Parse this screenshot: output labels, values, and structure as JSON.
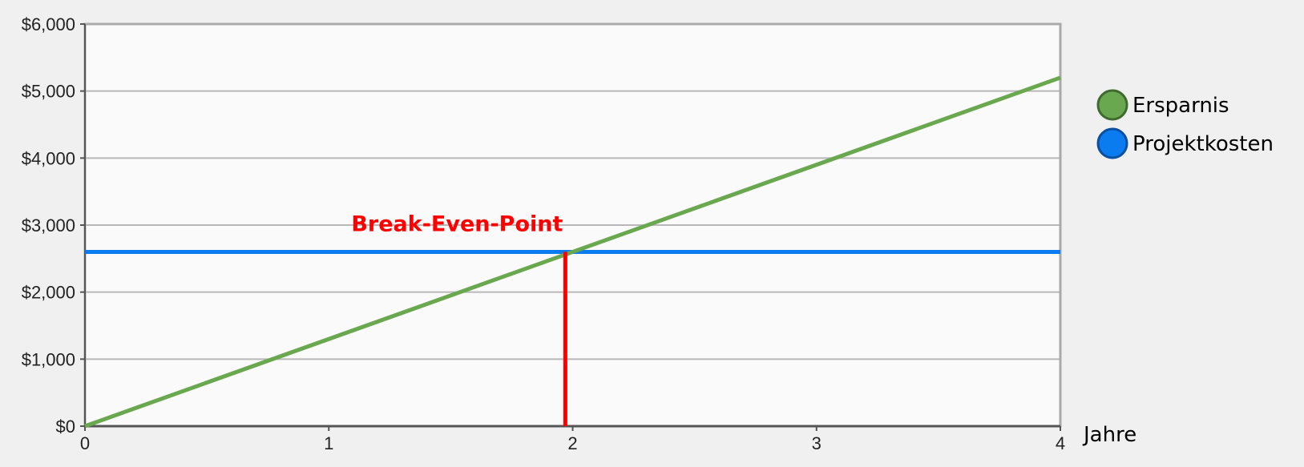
{
  "chart_data": {
    "type": "line",
    "title": "",
    "xlabel": "Jahre",
    "ylabel": "",
    "xlim": [
      0,
      4
    ],
    "ylim": [
      0,
      6000
    ],
    "x_ticks": [
      0,
      1,
      2,
      3,
      4
    ],
    "x_tick_labels": [
      "0",
      "1",
      "2",
      "3",
      "4"
    ],
    "y_ticks": [
      0,
      1000,
      2000,
      3000,
      4000,
      5000,
      6000
    ],
    "y_tick_labels": [
      "$0",
      "$1,000",
      "$2,000",
      "$3,000",
      "$4,000",
      "$5,000",
      "$6,000"
    ],
    "grid": true,
    "legend_position": "right",
    "series": [
      {
        "name": "Ersparnis",
        "color": "#6aa84f",
        "x": [
          0,
          4
        ],
        "y": [
          0,
          5200
        ]
      },
      {
        "name": "Projektkosten",
        "color": "#0a7cf0",
        "x": [
          0,
          4
        ],
        "y": [
          2600,
          2600
        ]
      }
    ],
    "annotations": [
      {
        "text": "Break-Even-Point",
        "color": "#ff0000",
        "x": 1.97,
        "y": 2600
      }
    ]
  }
}
